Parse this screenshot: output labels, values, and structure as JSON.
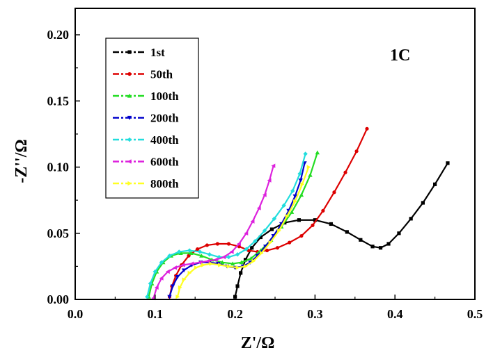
{
  "chart_data": {
    "type": "line",
    "title": "",
    "annotation": "1C",
    "xlabel": "Z'/Ω",
    "ylabel": "-Z''/Ω",
    "xlim": [
      0.0,
      0.5
    ],
    "ylim": [
      0.0,
      0.22
    ],
    "xticks": [
      0.0,
      0.1,
      0.2,
      0.3,
      0.4,
      0.5
    ],
    "xtick_labels": [
      "0.0",
      "0.1",
      "0.2",
      "0.3",
      "0.4",
      "0.5"
    ],
    "yticks": [
      0.0,
      0.05,
      0.1,
      0.15,
      0.2
    ],
    "ytick_labels": [
      "0.00",
      "0.05",
      "0.10",
      "0.15",
      "0.20"
    ],
    "legend_position": "top-left",
    "series": [
      {
        "name": "1st",
        "color": "#000000",
        "marker": "square",
        "x": [
          0.2,
          0.203,
          0.207,
          0.213,
          0.221,
          0.232,
          0.246,
          0.262,
          0.28,
          0.3,
          0.32,
          0.34,
          0.357,
          0.372,
          0.382,
          0.392,
          0.405,
          0.42,
          0.435,
          0.45,
          0.466
        ],
        "y": [
          0.002,
          0.01,
          0.02,
          0.03,
          0.039,
          0.047,
          0.053,
          0.058,
          0.06,
          0.06,
          0.057,
          0.051,
          0.045,
          0.04,
          0.039,
          0.042,
          0.05,
          0.061,
          0.073,
          0.087,
          0.103
        ]
      },
      {
        "name": "50th",
        "color": "#dd0000",
        "marker": "circle",
        "x": [
          0.118,
          0.121,
          0.126,
          0.133,
          0.142,
          0.153,
          0.165,
          0.178,
          0.192,
          0.205,
          0.217,
          0.228,
          0.24,
          0.253,
          0.268,
          0.283,
          0.297,
          0.31,
          0.324,
          0.338,
          0.352,
          0.365
        ],
        "y": [
          0.002,
          0.01,
          0.018,
          0.026,
          0.033,
          0.038,
          0.041,
          0.042,
          0.042,
          0.04,
          0.037,
          0.036,
          0.037,
          0.039,
          0.043,
          0.048,
          0.056,
          0.067,
          0.081,
          0.096,
          0.112,
          0.129
        ]
      },
      {
        "name": "100th",
        "color": "#22dd22",
        "marker": "triangle-up",
        "x": [
          0.092,
          0.096,
          0.102,
          0.11,
          0.12,
          0.132,
          0.145,
          0.158,
          0.171,
          0.184,
          0.197,
          0.208,
          0.22,
          0.232,
          0.245,
          0.258,
          0.271,
          0.283,
          0.294,
          0.303
        ],
        "y": [
          0.002,
          0.012,
          0.021,
          0.028,
          0.033,
          0.035,
          0.035,
          0.033,
          0.03,
          0.028,
          0.027,
          0.028,
          0.031,
          0.037,
          0.045,
          0.055,
          0.066,
          0.079,
          0.094,
          0.111
        ]
      },
      {
        "name": "200th",
        "color": "#0000cc",
        "marker": "triangle-down",
        "x": [
          0.118,
          0.122,
          0.128,
          0.136,
          0.146,
          0.157,
          0.168,
          0.179,
          0.19,
          0.2,
          0.21,
          0.219,
          0.228,
          0.238,
          0.248,
          0.258,
          0.267,
          0.275,
          0.282,
          0.287
        ],
        "y": [
          0.002,
          0.01,
          0.017,
          0.022,
          0.026,
          0.028,
          0.028,
          0.027,
          0.025,
          0.024,
          0.025,
          0.028,
          0.033,
          0.04,
          0.048,
          0.057,
          0.067,
          0.078,
          0.09,
          0.103
        ]
      },
      {
        "name": "400th",
        "color": "#22dddd",
        "marker": "diamond",
        "x": [
          0.09,
          0.094,
          0.1,
          0.108,
          0.118,
          0.13,
          0.143,
          0.156,
          0.168,
          0.18,
          0.192,
          0.203,
          0.214,
          0.225,
          0.237,
          0.249,
          0.261,
          0.272,
          0.281,
          0.288
        ],
        "y": [
          0.002,
          0.012,
          0.021,
          0.028,
          0.033,
          0.036,
          0.037,
          0.036,
          0.034,
          0.032,
          0.032,
          0.034,
          0.038,
          0.044,
          0.052,
          0.061,
          0.071,
          0.082,
          0.095,
          0.11
        ]
      },
      {
        "name": "600th",
        "color": "#dd22dd",
        "marker": "triangle-left",
        "x": [
          0.098,
          0.102,
          0.108,
          0.116,
          0.125,
          0.135,
          0.146,
          0.156,
          0.166,
          0.176,
          0.186,
          0.196,
          0.205,
          0.214,
          0.222,
          0.23,
          0.237,
          0.243,
          0.248
        ],
        "y": [
          0.001,
          0.009,
          0.016,
          0.021,
          0.024,
          0.026,
          0.027,
          0.028,
          0.029,
          0.03,
          0.032,
          0.036,
          0.042,
          0.05,
          0.059,
          0.069,
          0.079,
          0.09,
          0.101
        ]
      },
      {
        "name": "800th",
        "color": "#ffff22",
        "marker": "triangle-right",
        "x": [
          0.128,
          0.131,
          0.136,
          0.143,
          0.151,
          0.16,
          0.17,
          0.181,
          0.192,
          0.203,
          0.213,
          0.223,
          0.233,
          0.244,
          0.255,
          0.265,
          0.275,
          0.284,
          0.292
        ],
        "y": [
          0.002,
          0.009,
          0.015,
          0.02,
          0.024,
          0.026,
          0.027,
          0.026,
          0.025,
          0.024,
          0.025,
          0.029,
          0.035,
          0.043,
          0.052,
          0.063,
          0.074,
          0.087,
          0.1
        ]
      }
    ]
  }
}
